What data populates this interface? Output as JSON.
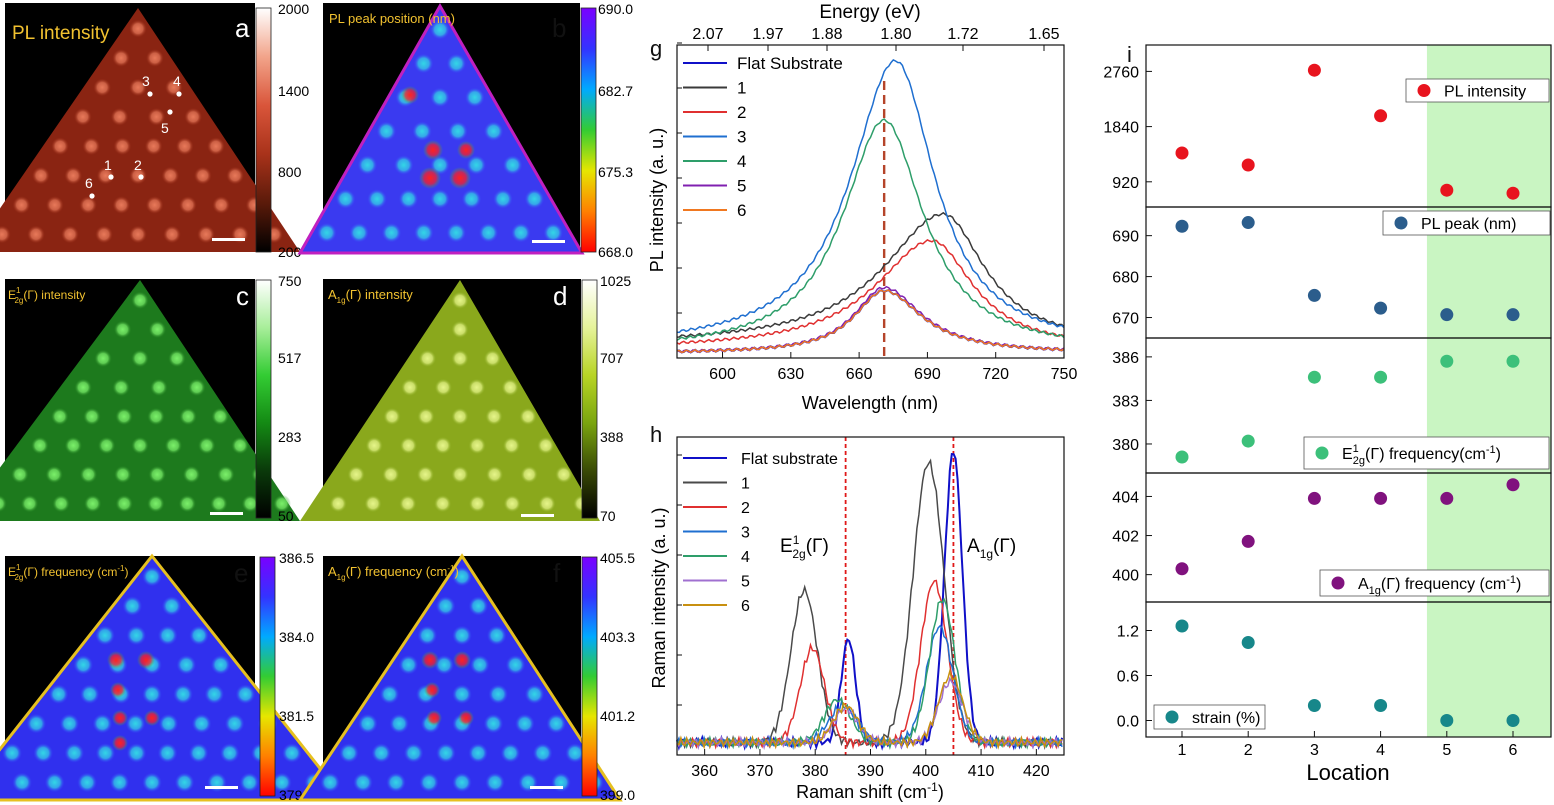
{
  "panels": {
    "a": {
      "letter": "a",
      "title": "PL intensity",
      "ticks": [
        "2000",
        "1400",
        "800",
        "200"
      ],
      "grad": [
        "#000000",
        "#5a1a0a",
        "#a8321a",
        "#d9553a",
        "#f2a48a",
        "#ffffff"
      ],
      "pts": [
        {
          "label": "1"
        },
        {
          "label": "2"
        },
        {
          "label": "3"
        },
        {
          "label": "4"
        },
        {
          "label": "5"
        },
        {
          "label": "6"
        }
      ]
    },
    "b": {
      "letter": "b",
      "title": "PL peak position (nm)",
      "ticks": [
        "690.0",
        "682.7",
        "675.3",
        "668.0"
      ]
    },
    "c": {
      "letter": "c",
      "title_pre": "E",
      "title_sup": "1",
      "title_sub": "2g",
      "title_post": "(Γ) intensity",
      "ticks": [
        "750",
        "517",
        "283",
        "50"
      ],
      "grad": [
        "#000000",
        "#0a3a0a",
        "#148a14",
        "#33cc33",
        "#a8ee9a",
        "#ffffff"
      ]
    },
    "d": {
      "letter": "d",
      "title_pre": "A",
      "title_sub": "1g",
      "title_post": "(Γ) intensity",
      "ticks": [
        "1025",
        "707",
        "388",
        "70"
      ],
      "grad": [
        "#000000",
        "#3a4a05",
        "#7aa50f",
        "#b8d425",
        "#e6f39a",
        "#ffffff"
      ]
    },
    "e": {
      "letter": "e",
      "title_pre": "E",
      "title_sup": "1",
      "title_sub": "2g",
      "title_post": "(Γ) frequency (cm",
      "title_unit_sup": "-1",
      "title_end": ")",
      "ticks": [
        "386.5",
        "384.0",
        "381.5",
        "379.0"
      ]
    },
    "f": {
      "letter": "f",
      "title_pre": "A",
      "title_sub": "1g",
      "title_post": "(Γ) frequency (cm",
      "title_unit_sup": "-1",
      "title_end": ")",
      "ticks": [
        "405.5",
        "403.3",
        "401.2",
        "399.0"
      ]
    },
    "jet_grad": [
      "#ff0000",
      "#ff8000",
      "#e6e600",
      "#33cc33",
      "#00aaff",
      "#3333ff",
      "#7a00ff"
    ]
  },
  "chart_data": [
    {
      "id": "g",
      "type": "line",
      "letter": "g",
      "xlabel": "Wavelength (nm)",
      "ylabel": "PL intensity (a. u.)",
      "top_label": "Energy (eV)",
      "xlim": [
        580,
        750
      ],
      "ylim": [
        0,
        100
      ],
      "xticks": [
        600,
        630,
        660,
        690,
        720,
        750
      ],
      "top_ticks": [
        "2.07",
        "1.97",
        "1.88",
        "1.80",
        "1.72",
        "1.65"
      ],
      "vline": {
        "x": 671,
        "color": "#b5442a"
      },
      "legend": [
        "Flat Substrate",
        "1",
        "2",
        "3",
        "4",
        "5",
        "6"
      ],
      "series": [
        {
          "name": "Flat Substrate",
          "color": "#1010c8",
          "width": 2,
          "peak": 671,
          "amp": 20,
          "wl": 16,
          "wr": 20,
          "base": 1.5
        },
        {
          "name": "1",
          "color": "#3a3a3a",
          "width": 1.5,
          "peak": 697,
          "amp": 42,
          "wl": 32,
          "wr": 22,
          "base": 4
        },
        {
          "name": "2",
          "color": "#e03030",
          "width": 1.5,
          "peak": 692,
          "amp": 35,
          "wl": 30,
          "wr": 22,
          "base": 2.5
        },
        {
          "name": "3",
          "color": "#1f6fd0",
          "width": 1.5,
          "peak": 676,
          "amp": 92,
          "wl": 24,
          "wr": 21,
          "base": 3
        },
        {
          "name": "4",
          "color": "#2e9e6a",
          "width": 1.5,
          "peak": 671,
          "amp": 74,
          "wl": 22,
          "wr": 21,
          "base": 2
        },
        {
          "name": "5",
          "color": "#8020b0",
          "width": 1.5,
          "peak": 671,
          "amp": 21,
          "wl": 16,
          "wr": 20,
          "base": 1.5
        },
        {
          "name": "6",
          "color": "#f07820",
          "width": 1.5,
          "peak": 671,
          "amp": 20,
          "wl": 16,
          "wr": 20,
          "base": 1.5
        }
      ]
    },
    {
      "id": "h",
      "type": "line",
      "letter": "h",
      "xlabel_pre": "Raman shift (cm",
      "xlabel_sup": "-1",
      "xlabel_end": ")",
      "ylabel": "Raman intensity (a. u.)",
      "xlim": [
        355,
        425
      ],
      "ylim": [
        0,
        100
      ],
      "xticks": [
        360,
        370,
        380,
        390,
        400,
        410,
        420
      ],
      "vlines": [
        {
          "x": 385.5,
          "color": "#e01818"
        },
        {
          "x": 405,
          "color": "#e01818"
        }
      ],
      "ann_e": {
        "pre": "E",
        "sup": "1",
        "sub": "2g",
        "post": "(Γ)"
      },
      "ann_a": {
        "pre": "A",
        "sub": "1g",
        "post": "(Γ)"
      },
      "legend": [
        "Flat substrate",
        "1",
        "2",
        "3",
        "4",
        "5",
        "6"
      ],
      "series": [
        {
          "name": "Flat substrate",
          "color": "#1010c8",
          "width": 2,
          "p1": 386,
          "a1": 34,
          "p2": 405,
          "a2": 96,
          "w1": 1.3,
          "w2": 1.6
        },
        {
          "name": "1",
          "color": "#4a4a4a",
          "width": 1.5,
          "p1": 378,
          "a1": 50,
          "p2": 400.5,
          "a2": 92,
          "w1": 2.4,
          "w2": 2.8
        },
        {
          "name": "2",
          "color": "#e03030",
          "width": 1.5,
          "p1": 379.5,
          "a1": 31,
          "p2": 401.5,
          "a2": 53,
          "w1": 2.2,
          "w2": 2.4
        },
        {
          "name": "3",
          "color": "#1f6fd0",
          "width": 1.5,
          "p1": 385,
          "a1": 12,
          "p2": 402.5,
          "a2": 38,
          "w1": 2.5,
          "w2": 2.4
        },
        {
          "name": "4",
          "color": "#2e9e6a",
          "width": 1.5,
          "p1": 384,
          "a1": 14,
          "p2": 403,
          "a2": 47,
          "w1": 2.4,
          "w2": 2.3
        },
        {
          "name": "5",
          "color": "#a070d0",
          "width": 1.5,
          "p1": 385.5,
          "a1": 11,
          "p2": 404.5,
          "a2": 20,
          "w1": 2.2,
          "w2": 2.2
        },
        {
          "name": "6",
          "color": "#c89010",
          "width": 1.5,
          "p1": 385.5,
          "a1": 12,
          "p2": 404.5,
          "a2": 22,
          "w1": 2.2,
          "w2": 2.2
        }
      ]
    },
    {
      "id": "i",
      "type": "scatter",
      "letter": "i",
      "xlabel": "Location",
      "x": [
        1,
        2,
        3,
        4,
        5,
        6
      ],
      "xticks": [
        "1",
        "2",
        "3",
        "4",
        "5",
        "6"
      ],
      "shade_from": 4.7,
      "shade_color": "#c9f5c2",
      "subplots": [
        {
          "name": "PL intensity",
          "legend": "PL intensity",
          "color": "#e8141e",
          "ylim": [
            500,
            3200
          ],
          "yticks": [
            920,
            1840,
            2760
          ],
          "yticklabels": [
            "920",
            "1840",
            "2760"
          ],
          "values": [
            1400,
            1200,
            2780,
            2020,
            780,
            730
          ]
        },
        {
          "name": "PL peak (nm)",
          "legend": "PL peak (nm)",
          "color": "#2b5d8c",
          "ylim": [
            665,
            697
          ],
          "yticks": [
            670,
            680,
            690
          ],
          "yticklabels": [
            "670",
            "680",
            "690"
          ],
          "values": [
            692.3,
            693.2,
            675.4,
            672.3,
            670.7,
            670.7
          ]
        },
        {
          "name": "E2g frequency",
          "legend_pre": "E",
          "legend_sup": "1",
          "legend_sub": "2g",
          "legend_post": "(Γ) frequency(cm",
          "legend_unit": "-1",
          "legend_end": ")",
          "color": "#3cc07a",
          "ylim": [
            378,
            387.3
          ],
          "yticks": [
            380,
            383,
            386
          ],
          "yticklabels": [
            "380",
            "383",
            "386"
          ],
          "values": [
            379.1,
            380.2,
            384.6,
            384.6,
            385.7,
            385.7
          ]
        },
        {
          "name": "A1g frequency",
          "legend_pre": "A",
          "legend_sub": "1g",
          "legend_post": "(Γ) frequency (cm",
          "legend_unit": "-1",
          "legend_end": ")",
          "color": "#80127e",
          "ylim": [
            398.6,
            405.2
          ],
          "yticks": [
            400,
            402,
            404
          ],
          "yticklabels": [
            "400",
            "402",
            "404"
          ],
          "values": [
            400.3,
            401.7,
            403.9,
            403.9,
            403.9,
            404.6
          ]
        },
        {
          "name": "strain (%)",
          "legend": "strain (%)",
          "color": "#17878a",
          "ylim": [
            -0.22,
            1.58
          ],
          "yticks": [
            0.0,
            0.6,
            1.2
          ],
          "yticklabels": [
            "0.0",
            "0.6",
            "1.2"
          ],
          "values": [
            1.26,
            1.04,
            0.2,
            0.2,
            0.0,
            0.0
          ]
        }
      ]
    }
  ]
}
